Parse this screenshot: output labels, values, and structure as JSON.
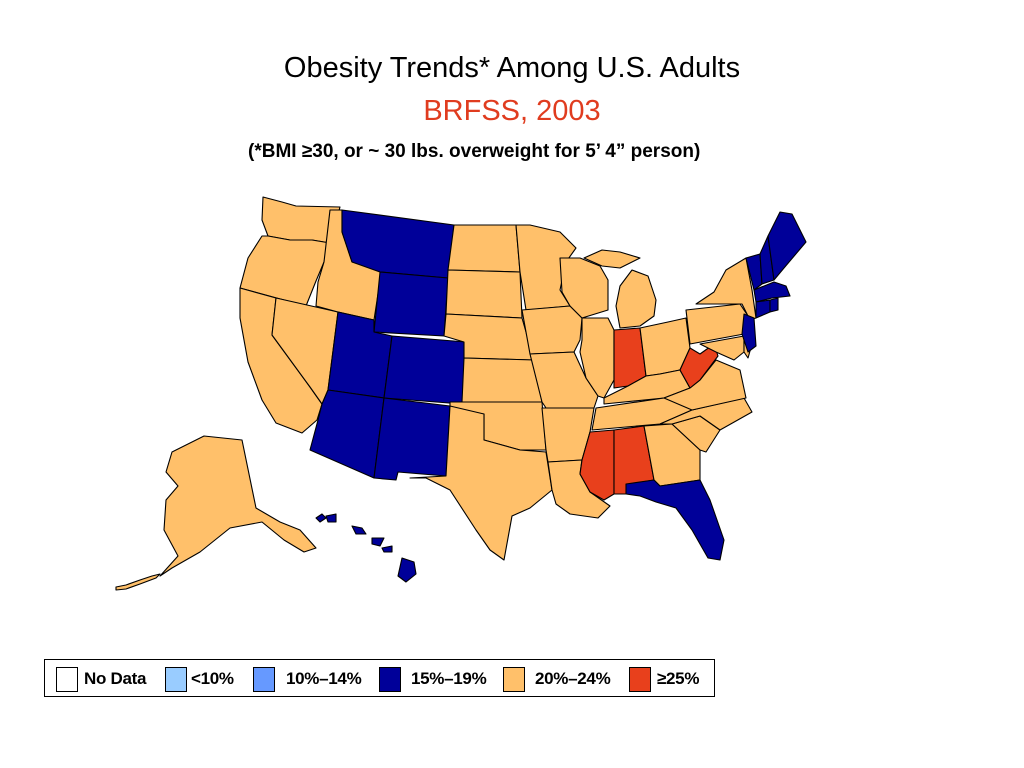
{
  "title": "Obesity Trends* Among U.S. Adults",
  "title_line2": "BRFSS, 2003",
  "subtitle": "(*BMI ≥30, or ~ 30 lbs. overweight for 5’ 4” person)",
  "colors": {
    "title_line2": "#e03c1f",
    "no_data": "#ffffff",
    "lt10": "#99ccff",
    "10_14": "#6699ff",
    "15_19": "#000099",
    "20_24": "#ffc06a",
    "ge25": "#e8401c"
  },
  "legend": {
    "items": [
      {
        "label": "No Data",
        "color": "#ffffff"
      },
      {
        "label": "<10%",
        "color": "#99ccff"
      },
      {
        "label": "10%–14%",
        "color": "#6699ff"
      },
      {
        "label": "15%–19%",
        "color": "#000099"
      },
      {
        "label": "20%–24%",
        "color": "#ffc06a"
      },
      {
        "label": "≥25%",
        "color": "#e8401c"
      }
    ]
  },
  "map_data": {
    "15-19%": [
      "MT",
      "WY",
      "UT",
      "CO",
      "AZ",
      "NM",
      "FL",
      "HI",
      "VT",
      "NH",
      "ME",
      "MA",
      "RI",
      "CT",
      "NJ"
    ],
    "20-24%": [
      "WA",
      "OR",
      "CA",
      "NV",
      "ID",
      "ND",
      "SD",
      "NE",
      "KS",
      "OK",
      "TX",
      "MN",
      "IA",
      "MO",
      "AR",
      "LA",
      "WI",
      "IL",
      "MI",
      "OH",
      "KY",
      "TN",
      "GA",
      "SC",
      "NC",
      "VA",
      "MD",
      "DE",
      "PA",
      "NY",
      "AK"
    ],
    ">=25%": [
      "IN",
      "WV",
      "MS",
      "AL"
    ]
  }
}
